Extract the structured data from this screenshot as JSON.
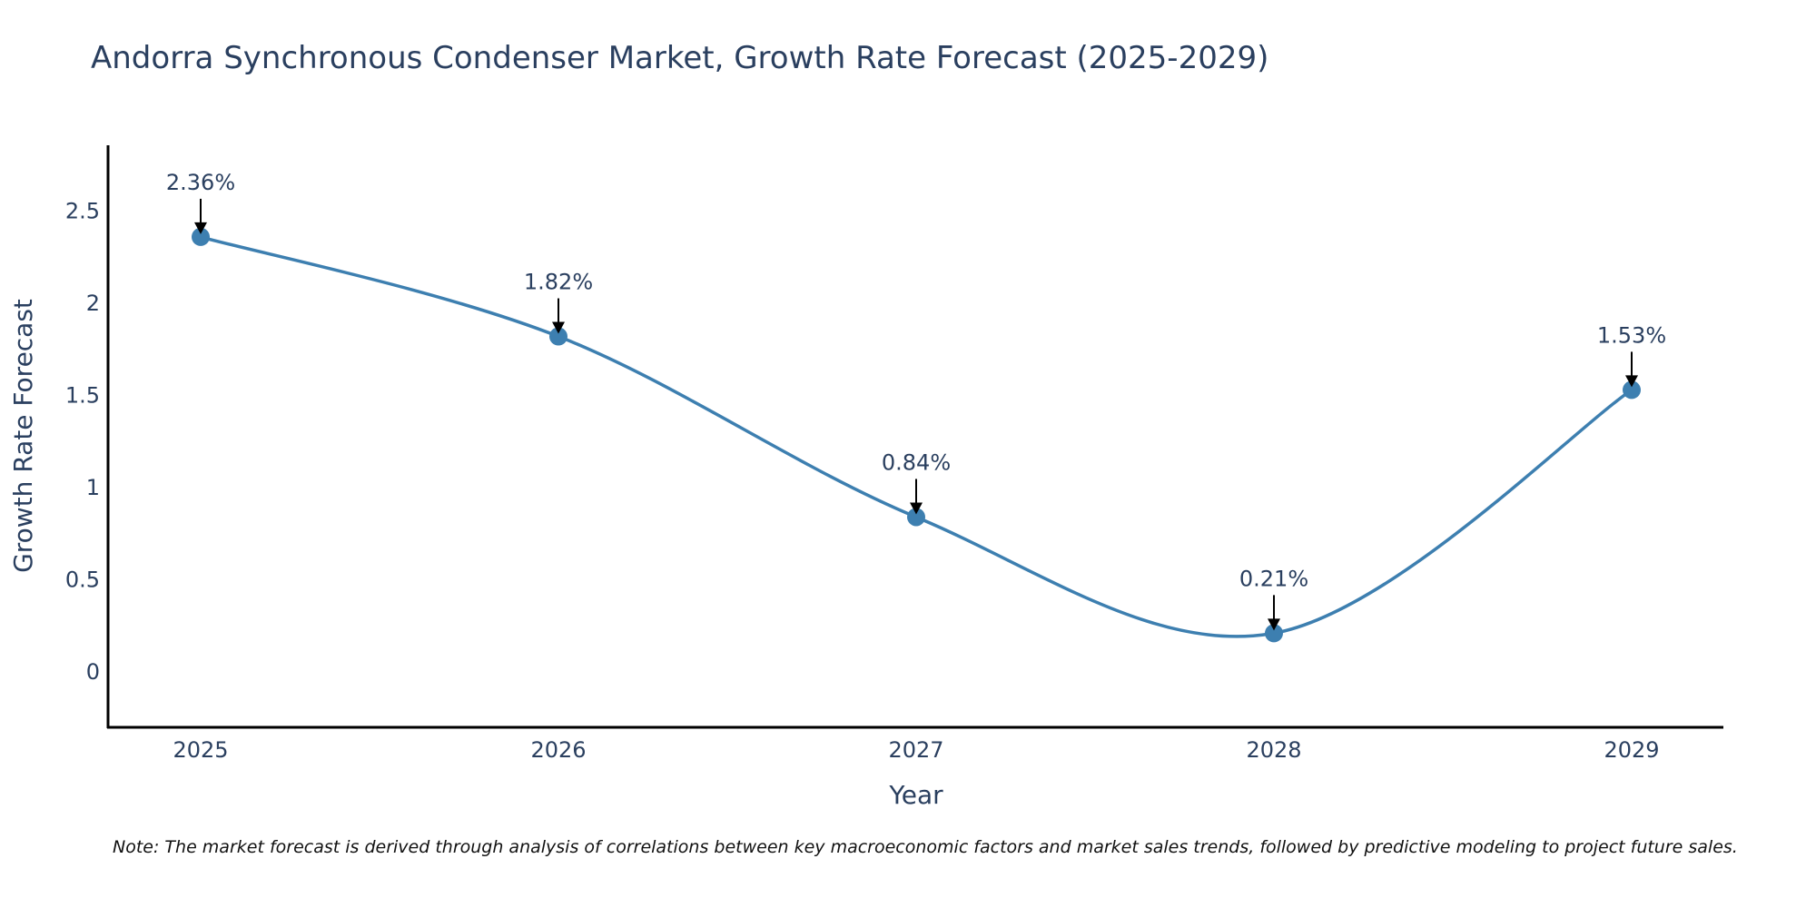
{
  "chart_data": {
    "type": "line",
    "title": "Andorra Synchronous Condenser Market, Growth Rate Forecast (2025-2029)",
    "xlabel": "Year",
    "ylabel": "Growth Rate Forecast",
    "categories": [
      "2025",
      "2026",
      "2027",
      "2028",
      "2029"
    ],
    "values": [
      2.36,
      1.82,
      0.84,
      0.21,
      1.53
    ],
    "data_labels": [
      "2.36%",
      "1.82%",
      "0.84%",
      "0.21%",
      "1.53%"
    ],
    "yticks": [
      0,
      0.5,
      1,
      1.5,
      2,
      2.5
    ],
    "ytick_labels": [
      "0",
      "0.5",
      "1",
      "1.5",
      "2",
      "2.5"
    ],
    "ylim": [
      -0.3,
      2.85
    ],
    "grid": false,
    "line_shape": "spline",
    "colors": {
      "line": "#3d7fb0",
      "marker": "#3d7fb0",
      "axis": "#000000",
      "text": "#2a3f5f",
      "arrow": "#000000"
    },
    "note": "Note: The market forecast is derived through analysis of correlations between key macroeconomic factors and market sales trends, followed by predictive modeling to project future sales."
  }
}
